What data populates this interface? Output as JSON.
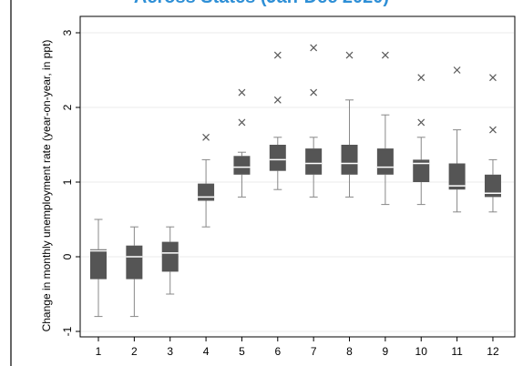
{
  "title": "Across States (Jan-Dec 2020)",
  "colors": {
    "box": "#555555",
    "median": "#ffffff",
    "whisker": "#888888",
    "outlier": "#5a5a5a",
    "grid": "#ebebeb",
    "axis": "#000000",
    "title": "#2E8FD6"
  },
  "chart_data": {
    "type": "box",
    "ylabel": "Change in monthly unemployment rate (year-on-year, in ppt)",
    "xlabel": "",
    "ylim": [
      -1.0,
      3.0
    ],
    "yticks": [
      -1,
      0,
      1,
      2,
      3
    ],
    "categories": [
      "1",
      "2",
      "3",
      "4",
      "5",
      "6",
      "7",
      "8",
      "9",
      "10",
      "11",
      "12"
    ],
    "grid": true,
    "boxes": [
      {
        "category": "1",
        "whisker_low": -0.8,
        "q1": -0.3,
        "median": 0.08,
        "q3": 0.1,
        "whisker_high": 0.5,
        "outliers": []
      },
      {
        "category": "2",
        "whisker_low": -0.8,
        "q1": -0.3,
        "median": 0.0,
        "q3": 0.15,
        "whisker_high": 0.4,
        "outliers": []
      },
      {
        "category": "3",
        "whisker_low": -0.5,
        "q1": -0.2,
        "median": 0.05,
        "q3": 0.2,
        "whisker_high": 0.4,
        "outliers": []
      },
      {
        "category": "4",
        "whisker_low": 0.4,
        "q1": 0.75,
        "median": 0.8,
        "q3": 0.98,
        "whisker_high": 1.3,
        "outliers": [
          1.6
        ]
      },
      {
        "category": "5",
        "whisker_low": 0.8,
        "q1": 1.1,
        "median": 1.2,
        "q3": 1.35,
        "whisker_high": 1.4,
        "outliers": [
          1.8,
          2.2
        ]
      },
      {
        "category": "6",
        "whisker_low": 0.9,
        "q1": 1.15,
        "median": 1.3,
        "q3": 1.5,
        "whisker_high": 1.6,
        "outliers": [
          2.1,
          2.7
        ]
      },
      {
        "category": "7",
        "whisker_low": 0.8,
        "q1": 1.1,
        "median": 1.25,
        "q3": 1.45,
        "whisker_high": 1.6,
        "outliers": [
          2.2,
          2.8
        ]
      },
      {
        "category": "8",
        "whisker_low": 0.8,
        "q1": 1.1,
        "median": 1.25,
        "q3": 1.5,
        "whisker_high": 2.1,
        "outliers": [
          2.7
        ]
      },
      {
        "category": "9",
        "whisker_low": 0.7,
        "q1": 1.1,
        "median": 1.2,
        "q3": 1.45,
        "whisker_high": 1.9,
        "outliers": [
          2.7
        ]
      },
      {
        "category": "10",
        "whisker_low": 0.7,
        "q1": 1.0,
        "median": 1.25,
        "q3": 1.3,
        "whisker_high": 1.6,
        "outliers": [
          1.8,
          2.4
        ]
      },
      {
        "category": "11",
        "whisker_low": 0.6,
        "q1": 0.9,
        "median": 0.95,
        "q3": 1.25,
        "whisker_high": 1.7,
        "outliers": [
          2.5
        ]
      },
      {
        "category": "12",
        "whisker_low": 0.6,
        "q1": 0.8,
        "median": 0.85,
        "q3": 1.1,
        "whisker_high": 1.3,
        "outliers": [
          1.7,
          2.4
        ]
      }
    ]
  }
}
